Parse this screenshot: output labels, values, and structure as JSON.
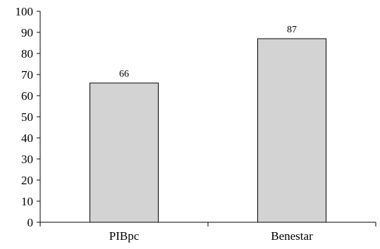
{
  "chart_data": {
    "type": "bar",
    "categories": [
      "PIBpc",
      "Benestar"
    ],
    "values": [
      66,
      87
    ],
    "data_labels": [
      "66",
      "87"
    ],
    "ylim": [
      0,
      100
    ],
    "yticks": [
      "0",
      "10",
      "20",
      "30",
      "40",
      "50",
      "60",
      "70",
      "80",
      "90",
      "100"
    ],
    "grid": false,
    "bar_color": "#d3d3d3",
    "bar_edge_color": "#000000"
  }
}
